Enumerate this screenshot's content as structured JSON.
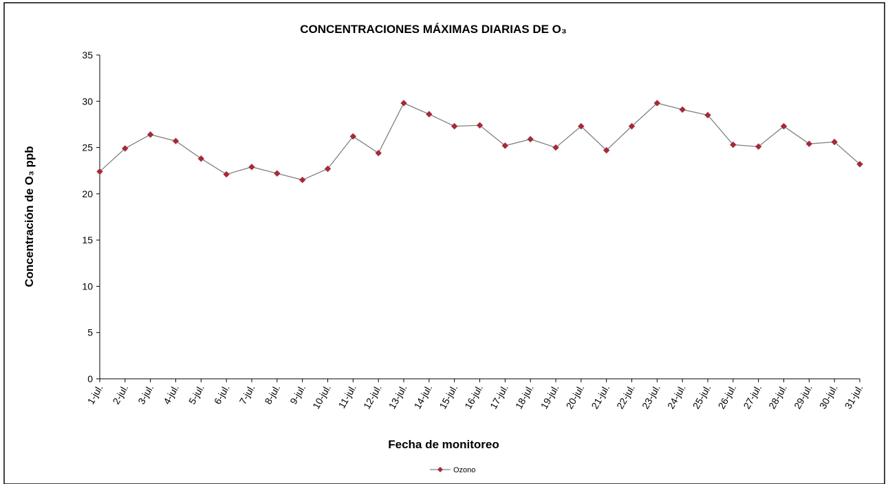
{
  "chart_data": {
    "type": "line",
    "title": "CONCENTRACIONES MÁXIMAS DIARIAS DE O₃",
    "y_label": "Concentración de O₃ ppb",
    "x_label": "Fecha de monitoreo",
    "categories": [
      "1-jul.",
      "2-jul.",
      "3-jul.",
      "4-jul.",
      "5-jul.",
      "6-jul.",
      "7-jul.",
      "8-jul.",
      "9-jul.",
      "10-jul.",
      "11-jul.",
      "12-jul.",
      "13-jul.",
      "14-jul.",
      "15-jul.",
      "16-jul.",
      "17-jul.",
      "18-jul.",
      "19-jul.",
      "20-jul.",
      "21-jul.",
      "22-jul.",
      "23-jul.",
      "24-jul.",
      "25-jul.",
      "26-jul.",
      "27-jul.",
      "28-jul.",
      "29-jul.",
      "30-jul.",
      "31-jul."
    ],
    "series": [
      {
        "name": "Ozono",
        "color": "#a52a3a",
        "line_color": "#808080",
        "values": [
          22.4,
          24.9,
          26.4,
          25.7,
          23.8,
          22.1,
          22.9,
          22.2,
          21.5,
          22.7,
          26.2,
          24.4,
          29.8,
          28.6,
          27.3,
          27.4,
          25.2,
          25.9,
          25.0,
          27.3,
          24.7,
          27.3,
          29.8,
          29.1,
          28.5,
          25.3,
          25.1,
          27.3,
          25.4,
          25.6,
          23.2
        ]
      }
    ],
    "ylim": [
      0,
      35
    ],
    "yticks": [
      0,
      5,
      10,
      15,
      20,
      25,
      30,
      35
    ],
    "grid": false,
    "legend": "bottom"
  }
}
